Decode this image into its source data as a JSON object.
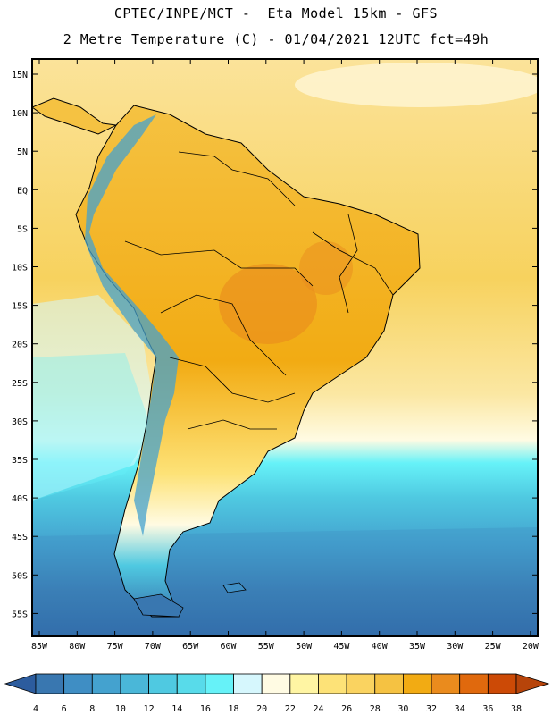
{
  "header": {
    "line1": "CPTEC/INPE/MCT -  Eta Model 15km - GFS",
    "line2": "2 Metre Temperature (C) - 01/04/2021 12UTC fct=49h"
  },
  "map": {
    "lat_labels": [
      "15N",
      "10N",
      "5N",
      "EQ",
      "5S",
      "10S",
      "15S",
      "20S",
      "25S",
      "30S",
      "35S",
      "40S",
      "45S",
      "50S",
      "55S"
    ],
    "lon_labels": [
      "85W",
      "80W",
      "75W",
      "70W",
      "65W",
      "60W",
      "55W",
      "50W",
      "45W",
      "40W",
      "35W",
      "30W",
      "25W",
      "20W"
    ]
  },
  "colorbar": {
    "labels": [
      "4",
      "6",
      "8",
      "10",
      "12",
      "14",
      "16",
      "18",
      "20",
      "22",
      "24",
      "26",
      "28",
      "30",
      "32",
      "34",
      "36",
      "38"
    ],
    "colors": [
      "#3977b0",
      "#3f8ec4",
      "#44a2cf",
      "#4ab7d8",
      "#4fc9e1",
      "#58dbea",
      "#66f2f8",
      "#d6f7fd",
      "#fffbe3",
      "#fff5a3",
      "#fde277",
      "#fad360",
      "#f5c242",
      "#f2ab13",
      "#ea8b1d",
      "#e0690d",
      "#cc4a06"
    ],
    "low_color": "#2c5c9e",
    "high_color": "#b7440a"
  }
}
